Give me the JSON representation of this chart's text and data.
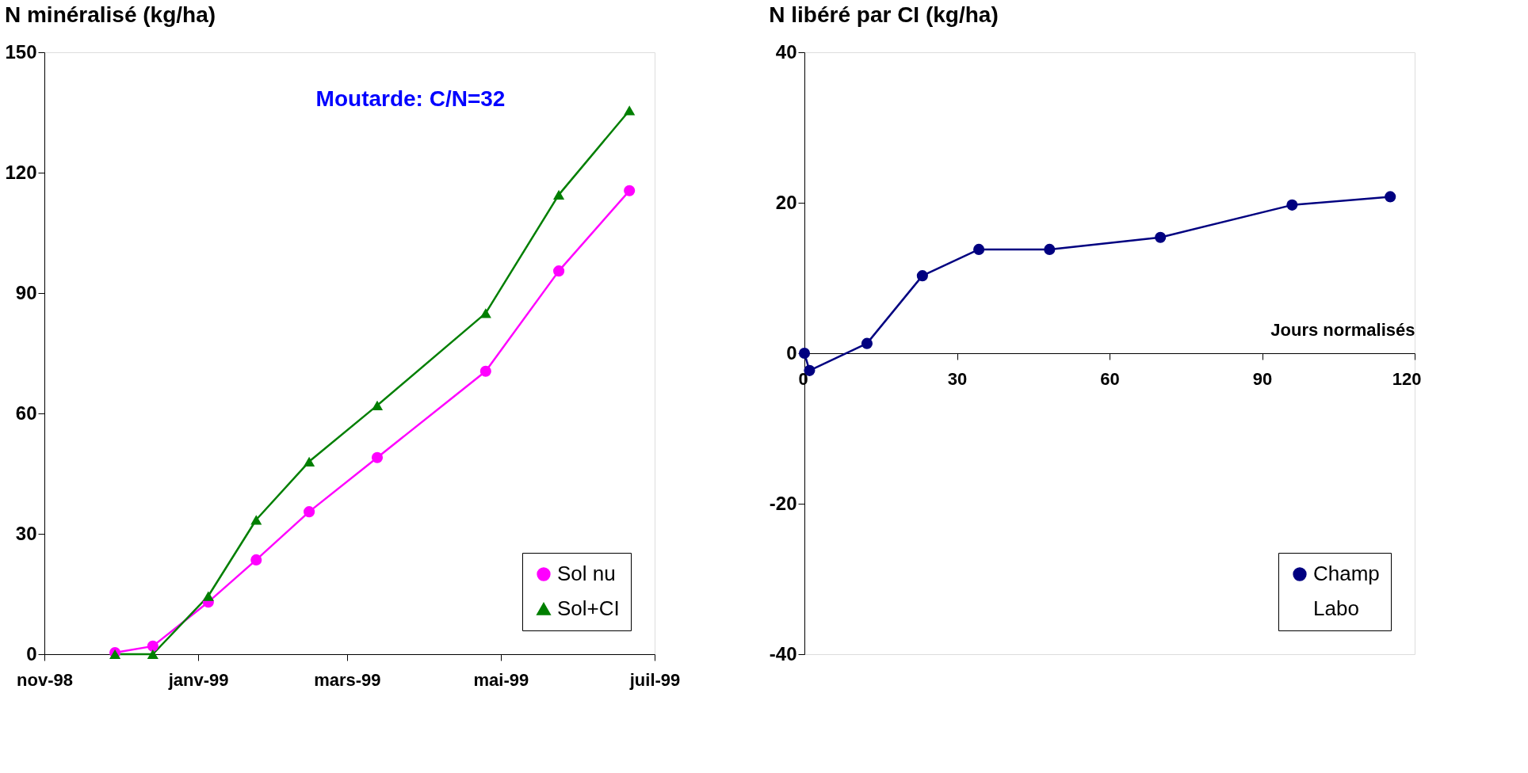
{
  "chart_data": [
    {
      "type": "line",
      "title": "N minéralisé  (kg/ha)",
      "annotations": [
        "Moutarde: C/N=32"
      ],
      "x": [
        "1998-11-29",
        "1998-12-14",
        "1999-01-05",
        "1999-01-24",
        "1999-02-14",
        "1999-03-13",
        "1999-04-25",
        "1999-05-24",
        "1999-06-21"
      ],
      "series": [
        {
          "name": "Sol nu",
          "color": "#ff00ff",
          "marker": "circle",
          "values": [
            0.4,
            2,
            13,
            23.5,
            35.5,
            49,
            70.5,
            95.5,
            115.5
          ]
        },
        {
          "name": "Sol+CI",
          "color": "#007f00",
          "marker": "triangle",
          "values": [
            0,
            0,
            14.5,
            33.5,
            48,
            62,
            85,
            114.5,
            135.5
          ]
        }
      ],
      "xlim": [
        "1998-11-01",
        "1999-07-01"
      ],
      "xticks": [
        {
          "value": "1998-11-01",
          "label": "nov-98"
        },
        {
          "value": "1999-01-01",
          "label": "janv-99"
        },
        {
          "value": "1999-03-01",
          "label": "mars-99"
        },
        {
          "value": "1999-05-01",
          "label": "mai-99"
        },
        {
          "value": "1999-07-01",
          "label": "juil-99"
        }
      ],
      "ylim": [
        0,
        150
      ],
      "yticks": [
        0,
        30,
        60,
        90,
        120,
        150
      ],
      "grid": false,
      "legend": "bottom right"
    },
    {
      "type": "line",
      "title": "N libéré par CI  (kg/ha)",
      "xlabel": "Jours normalisés",
      "x": [
        0,
        1,
        12.3,
        23.2,
        34.3,
        48.2,
        70,
        95.9,
        115.2
      ],
      "series": [
        {
          "name": "Champ",
          "color": "#000080",
          "marker": "circle",
          "values": [
            0,
            -2.3,
            1.3,
            10.3,
            13.8,
            13.8,
            15.4,
            19.7,
            20.8
          ]
        },
        {
          "name": "Labo",
          "values": [
            null,
            null,
            null,
            null,
            null,
            null,
            null,
            null,
            null
          ]
        }
      ],
      "xlim": [
        0,
        120
      ],
      "xticks": [
        0,
        30,
        60,
        90,
        120
      ],
      "ylim": [
        -40,
        40
      ],
      "yticks": [
        -40,
        -20,
        0,
        20,
        40
      ],
      "grid": false,
      "legend": "bottom right"
    }
  ]
}
